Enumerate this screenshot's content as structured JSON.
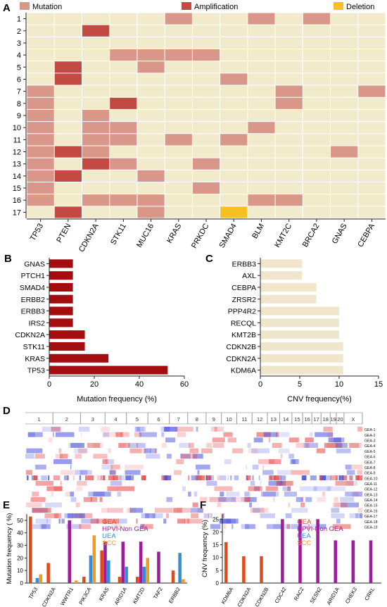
{
  "panel_labels": {
    "a": "A",
    "b": "B",
    "c": "C",
    "d": "D",
    "e": "E",
    "f": "F"
  },
  "colors": {
    "empty": "#f1ebcc",
    "mutation": "#d9978a",
    "amplification": "#c34a43",
    "deletion": "#f5c021",
    "dark_red_bar": "#a30d0f",
    "beige_bar": "#efe6cb",
    "gea": "#e14b1c",
    "hpvi": "#9f1d9c",
    "uea": "#2f8fdc",
    "scc": "#f09a2a"
  },
  "chart_data": [
    {
      "id": "A",
      "type": "heatmap",
      "legend": [
        {
          "label": "Mutation",
          "key": "mutation"
        },
        {
          "label": "Amplification",
          "key": "amplification"
        },
        {
          "label": "Deletion",
          "key": "deletion"
        }
      ],
      "rows": [
        "1",
        "2",
        "3",
        "4",
        "5",
        "6",
        "7",
        "8",
        "9",
        "10",
        "11",
        "12",
        "13",
        "14",
        "15",
        "16",
        "17"
      ],
      "columns": [
        "TP53",
        "PTEN",
        "CDKN2A",
        "STK11",
        "MUC16",
        "KRAS",
        "PRKDC",
        "SMAD4",
        "BLM",
        "KMT2C",
        "BRCA2",
        "GNAS",
        "CEBPA"
      ],
      "cells": [
        [
          0,
          0,
          0,
          0,
          0,
          1,
          0,
          0,
          1,
          0,
          1,
          0,
          0
        ],
        [
          0,
          0,
          2,
          0,
          0,
          0,
          0,
          0,
          0,
          0,
          0,
          0,
          0
        ],
        [
          0,
          0,
          0,
          0,
          0,
          0,
          0,
          0,
          0,
          0,
          0,
          0,
          0
        ],
        [
          0,
          0,
          0,
          1,
          1,
          1,
          1,
          0,
          0,
          0,
          0,
          0,
          0
        ],
        [
          0,
          2,
          0,
          0,
          1,
          0,
          0,
          0,
          0,
          0,
          0,
          0,
          0
        ],
        [
          0,
          2,
          0,
          0,
          0,
          0,
          0,
          1,
          0,
          0,
          0,
          0,
          0
        ],
        [
          1,
          0,
          0,
          0,
          0,
          0,
          0,
          0,
          0,
          1,
          0,
          0,
          1
        ],
        [
          1,
          0,
          0,
          2,
          0,
          0,
          0,
          0,
          0,
          1,
          0,
          0,
          0
        ],
        [
          1,
          0,
          1,
          0,
          0,
          0,
          0,
          0,
          0,
          0,
          0,
          0,
          0
        ],
        [
          1,
          0,
          1,
          1,
          0,
          0,
          0,
          0,
          1,
          0,
          0,
          0,
          0
        ],
        [
          1,
          0,
          1,
          1,
          0,
          1,
          0,
          1,
          0,
          0,
          0,
          0,
          0
        ],
        [
          1,
          2,
          1,
          0,
          0,
          0,
          0,
          0,
          0,
          0,
          0,
          1,
          0
        ],
        [
          1,
          0,
          2,
          1,
          0,
          0,
          1,
          0,
          0,
          0,
          0,
          0,
          0
        ],
        [
          1,
          2,
          0,
          0,
          1,
          0,
          0,
          0,
          0,
          0,
          0,
          0,
          0
        ],
        [
          1,
          0,
          0,
          0,
          0,
          0,
          1,
          0,
          0,
          0,
          0,
          0,
          0
        ],
        [
          1,
          0,
          1,
          1,
          1,
          0,
          0,
          0,
          1,
          1,
          0,
          0,
          0
        ],
        [
          0,
          2,
          0,
          0,
          1,
          0,
          0,
          3,
          0,
          0,
          0,
          0,
          0
        ]
      ]
    },
    {
      "id": "B",
      "type": "bar",
      "orientation": "horizontal",
      "categories": [
        "GNAS",
        "PTCH1",
        "SMAD4",
        "ERBB2",
        "ERBB3",
        "IRS2",
        "CDKN2A",
        "STK11",
        "KRAS",
        "TP53"
      ],
      "values": [
        10.5,
        10.5,
        10.5,
        10.5,
        10.5,
        10.5,
        15.8,
        15.8,
        26.3,
        52.6
      ],
      "xlabel": "Mutation frequency  (%)",
      "xlim": [
        0,
        60
      ],
      "xticks": [
        0,
        20,
        40,
        60
      ]
    },
    {
      "id": "C",
      "type": "bar",
      "orientation": "horizontal",
      "categories": [
        "ERBB3",
        "AXL",
        "CEBPA",
        "ZRSR2",
        "PPP4R2",
        "RECQL",
        "KMT2B",
        "CDKN2B",
        "CDKN2A",
        "KDM6A"
      ],
      "values": [
        5.3,
        5.3,
        7.1,
        7.1,
        10.0,
        10.0,
        10.0,
        10.5,
        10.5,
        10.5
      ],
      "xlabel": "CNV frequency(%)",
      "xlim": [
        0,
        15
      ],
      "xticks": [
        0,
        5,
        10,
        15
      ]
    },
    {
      "id": "D",
      "type": "heatmap",
      "chromosomes": [
        "1",
        "2",
        "3",
        "4",
        "5",
        "6",
        "7",
        "8",
        "9",
        "10",
        "11",
        "12",
        "13",
        "14",
        "15",
        "16",
        "17",
        "18",
        "19",
        "20",
        "X"
      ],
      "samples": [
        "GEA-1",
        "GEA-2",
        "GEA-3",
        "GEA-4",
        "GEA-5",
        "GEA-6",
        "GEA-7",
        "GEA-8",
        "GEA-9",
        "GEA-10",
        "GEA-11",
        "GEA-12",
        "GEA-13",
        "GEA-14",
        "GEA-15",
        "GEA-16",
        "GEA-17",
        "GEA-18",
        "GEA-19"
      ]
    },
    {
      "id": "E",
      "type": "bar",
      "ylabel": "Mutation frequency ( %)",
      "ylim": [
        0,
        55
      ],
      "yticks": [
        0,
        10,
        20,
        30,
        40,
        50
      ],
      "legend": [
        {
          "label": "GEA",
          "key": "gea"
        },
        {
          "label": "HPVI-Non GEA",
          "key": "hpvi"
        },
        {
          "label": "UEA",
          "key": "uea"
        },
        {
          "label": "SCC",
          "key": "scc"
        }
      ],
      "categories": [
        "TP53",
        "CDKN2A",
        "WWTR1",
        "PIK3CA",
        "KRAS",
        "ARID1A",
        "KMT2D",
        "TAF2",
        "ERBB2"
      ],
      "series": [
        {
          "name": "GEA",
          "values": [
            53,
            16,
            0,
            5,
            26,
            5,
            5,
            0,
            10
          ]
        },
        {
          "name": "HPVI-Non GEA",
          "values": [
            0,
            0,
            50,
            0,
            33,
            33,
            33,
            25,
            0
          ]
        },
        {
          "name": "UEA",
          "values": [
            4,
            0,
            0,
            22,
            18,
            13,
            13,
            0,
            24
          ]
        },
        {
          "name": "SCC",
          "values": [
            7,
            0,
            2,
            38,
            0,
            0,
            20,
            0,
            3
          ]
        }
      ]
    },
    {
      "id": "F",
      "type": "bar",
      "ylabel": "CNV frequency  (%)",
      "ylim": [
        0,
        27
      ],
      "yticks": [
        0,
        5,
        10,
        15,
        20,
        25
      ],
      "legend": [
        {
          "label": "GEA",
          "key": "gea"
        },
        {
          "label": "HPVI-Non GEA",
          "key": "hpvi"
        },
        {
          "label": "UEA",
          "key": "uea"
        },
        {
          "label": "SCC",
          "key": "scc"
        }
      ],
      "categories": [
        "KDM6A",
        "CDKN2A",
        "CDKN2B",
        "CDC42",
        "RAC2",
        "SESN2",
        "ARID1A",
        "CHEK2",
        "CRKL"
      ],
      "series": [
        {
          "name": "GEA",
          "values": [
            16,
            10.5,
            10.5,
            0,
            0,
            0,
            0,
            0,
            0
          ]
        },
        {
          "name": "HPVI-Non GEA",
          "values": [
            0,
            0,
            0,
            25,
            25,
            25,
            16.7,
            16.7,
            16.7
          ]
        },
        {
          "name": "UEA",
          "values": [
            0,
            0,
            0,
            0,
            0,
            0,
            0,
            0,
            0
          ]
        },
        {
          "name": "SCC",
          "values": [
            0,
            0,
            0,
            0,
            0,
            0,
            0,
            0,
            0
          ]
        }
      ]
    }
  ]
}
